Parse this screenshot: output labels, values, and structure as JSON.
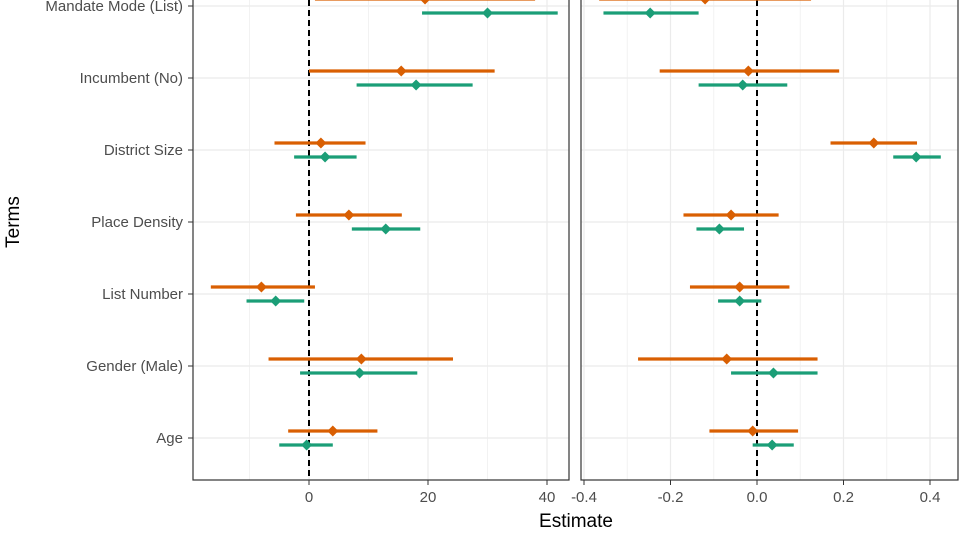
{
  "chart_data": [
    {
      "type": "scatter",
      "subtype": "coefficient-plot-with-intervals",
      "panel": "left",
      "xlabel": "Estimate",
      "ylabel": "Terms",
      "terms": [
        "Mandate Mode (List)",
        "Incumbent (No)",
        "District Size",
        "Place Density",
        "List Number",
        "Gender (Male)",
        "Age"
      ],
      "xticks": [
        0,
        20,
        40
      ],
      "xlim": [
        -19.5,
        44
      ],
      "reference_line": 0,
      "grid": true,
      "series_colors": [
        "#d95f02",
        "#1b9e77"
      ],
      "series": [
        {
          "color": "#d95f02",
          "estimates": [
            19.5,
            15.5,
            2,
            6.7,
            -8,
            8.8,
            4
          ],
          "lower": [
            1,
            0,
            -5.8,
            -2.2,
            -16.5,
            -6.8,
            -3.5
          ],
          "upper": [
            38,
            31.2,
            9.5,
            15.6,
            1,
            24.2,
            11.5
          ]
        },
        {
          "color": "#1b9e77",
          "estimates": [
            30,
            18,
            2.7,
            12.9,
            -5.6,
            8.5,
            -0.4
          ],
          "lower": [
            19,
            8,
            -2.5,
            7.2,
            -10.5,
            -1.5,
            -5
          ],
          "upper": [
            41.8,
            27.5,
            8,
            18.7,
            -0.8,
            18.2,
            4
          ]
        }
      ]
    },
    {
      "type": "scatter",
      "subtype": "coefficient-plot-with-intervals",
      "panel": "right",
      "xlabel": "Estimate",
      "xticks": [
        -0.4,
        -0.2,
        0,
        0.2,
        0.4
      ],
      "xtick_labels": [
        "-0.4",
        "-0.2",
        "0.0",
        "0.2",
        "0.4"
      ],
      "xlim": [
        -0.41,
        0.46
      ],
      "reference_line": 0,
      "grid": true,
      "series_colors": [
        "#d95f02",
        "#1b9e77"
      ],
      "series": [
        {
          "color": "#d95f02",
          "estimates": [
            -0.12,
            -0.02,
            0.27,
            -0.06,
            -0.04,
            -0.07,
            -0.01
          ],
          "lower": [
            -0.365,
            -0.225,
            0.17,
            -0.17,
            -0.155,
            -0.275,
            -0.11
          ],
          "upper": [
            0.125,
            0.19,
            0.37,
            0.05,
            0.075,
            0.14,
            0.095
          ]
        },
        {
          "color": "#1b9e77",
          "estimates": [
            -0.247,
            -0.033,
            0.368,
            -0.087,
            -0.04,
            0.038,
            0.035
          ],
          "lower": [
            -0.355,
            -0.135,
            0.315,
            -0.14,
            -0.09,
            -0.06,
            -0.01
          ],
          "upper": [
            -0.135,
            0.07,
            0.425,
            -0.03,
            0.01,
            0.14,
            0.085
          ]
        }
      ]
    }
  ]
}
